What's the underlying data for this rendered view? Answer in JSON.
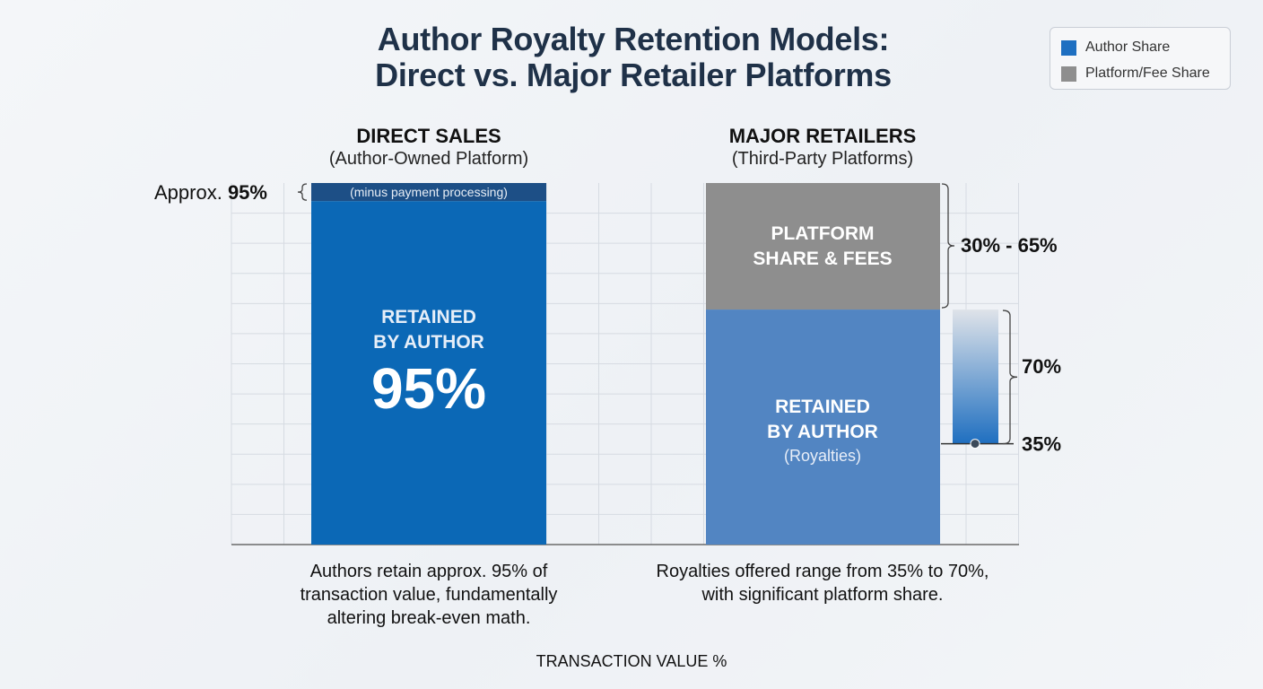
{
  "title_line1": "Author Royalty Retention Models:",
  "title_line2": "Direct vs. Major Retailer Platforms",
  "legend": [
    {
      "label": "Author Share",
      "color": "#1e6fc1"
    },
    {
      "label": "Platform/Fee Share",
      "color": "#8e8e8e"
    }
  ],
  "chart_data": {
    "type": "bar",
    "stacked": true,
    "xlabel": "TRANSACTION VALUE %",
    "ylim": [
      0,
      100
    ],
    "grid": true,
    "legend_position": "top-right",
    "categories": [
      {
        "title": "DIRECT SALES",
        "subtitle": "(Author-Owned Platform)"
      },
      {
        "title": "MAJOR RETAILERS",
        "subtitle": "(Third-Party Platforms)"
      }
    ],
    "series": [
      {
        "name": "Author Share",
        "color": "#1e6fc1",
        "values": [
          95,
          65
        ]
      },
      {
        "name": "Platform/Fee Share",
        "color": "#8e8e8e",
        "values": [
          5,
          35
        ]
      }
    ],
    "direct": {
      "bar_label_line1": "RETAINED",
      "bar_label_line2": "BY AUTHOR",
      "bar_value": "95%",
      "top_segment_label": "(minus payment processing)",
      "side_label_prefix": "Approx. ",
      "side_label_value": "95%",
      "color_main": "#0b68b6",
      "color_top": "#1d4f86"
    },
    "retail": {
      "platform_label_line1": "PLATFORM",
      "platform_label_line2": "SHARE & FEES",
      "author_label_line1": "RETAINED",
      "author_label_line2": "BY AUTHOR",
      "author_label_line3": "(Royalties)",
      "platform_range_label": "30% - 65%",
      "royalty_high": 70,
      "royalty_low": 35,
      "royalty_high_label": "70%",
      "royalty_low_label": "35%",
      "color_platform": "#8e8e8e",
      "color_author": "#5285c2"
    }
  },
  "captions": {
    "left": [
      "Authors retain approx. 95% of",
      "transaction value,  fundamentally",
      "altering break-even math."
    ],
    "right": [
      "Royalties offered range from 35% to 70%,",
      "with significant platform share."
    ]
  }
}
